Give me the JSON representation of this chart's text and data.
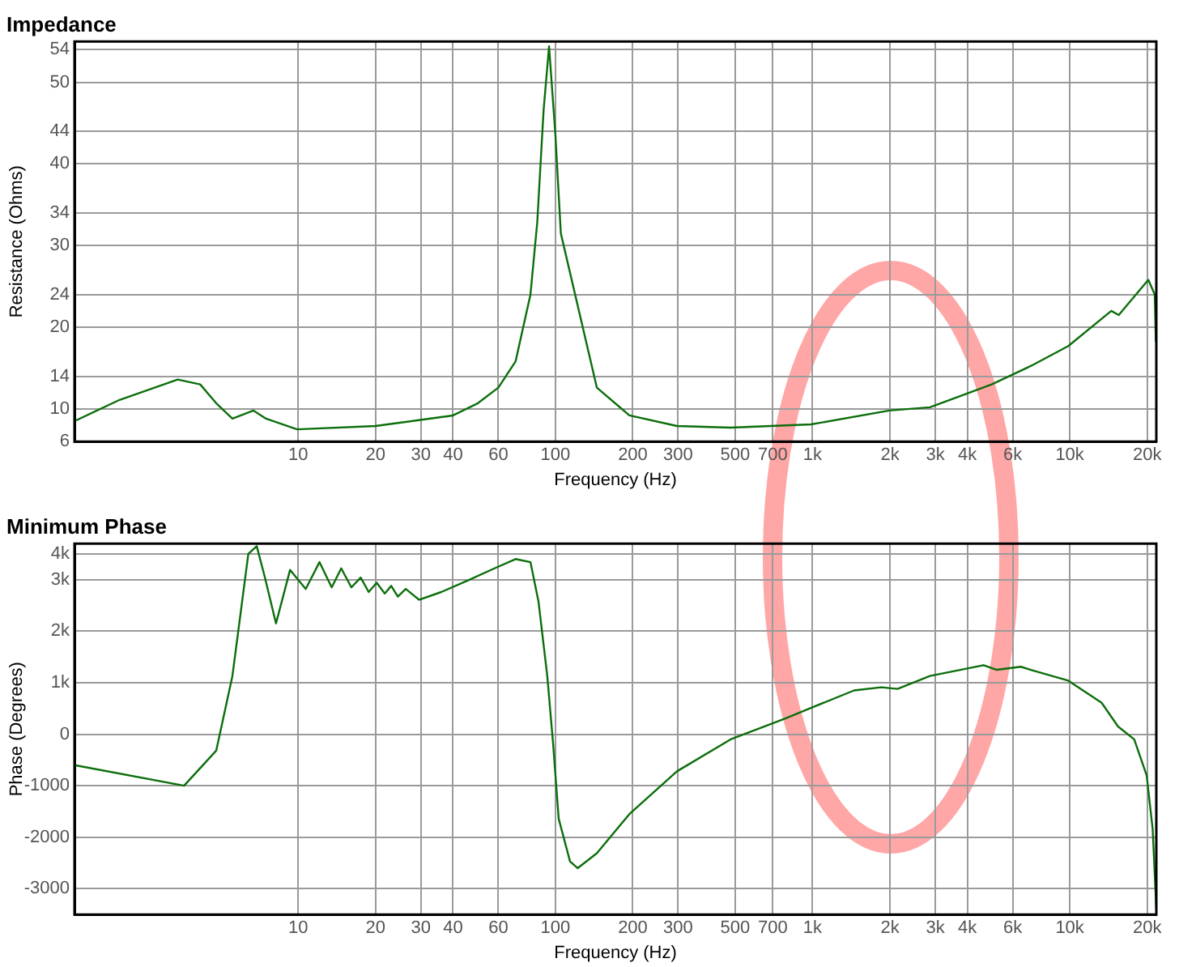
{
  "chart_data": [
    {
      "type": "line",
      "title": "Impedance",
      "xlabel": "Frequency (Hz)",
      "ylabel": "Resistance (Ohms)",
      "log": "x",
      "grid": true,
      "marker": "none",
      "xlim": [
        1.35,
        21700
      ],
      "ylim": [
        6,
        55
      ],
      "xticks": [
        10,
        20,
        30,
        40,
        60,
        100,
        200,
        300,
        500,
        700,
        {
          "value": 1000,
          "label": "1k"
        },
        {
          "value": 2000,
          "label": "2k"
        },
        {
          "value": 3000,
          "label": "3k"
        },
        {
          "value": 4000,
          "label": "4k"
        },
        {
          "value": 6000,
          "label": "6k"
        },
        {
          "value": 10000,
          "label": "10k"
        },
        {
          "value": 20000,
          "label": "20k"
        }
      ],
      "yticks": [
        6,
        10,
        14,
        20,
        24,
        30,
        34,
        40,
        44,
        50,
        54
      ],
      "x": [
        1.35,
        2.02,
        3.4,
        4.16,
        4.8,
        5.55,
        6.7,
        7.5,
        9.9,
        20,
        40,
        50,
        60,
        70,
        80,
        85,
        90,
        94.5,
        100,
        105,
        145,
        194,
        297,
        480,
        985,
        1990,
        2860,
        4970,
        7100,
        9870,
        14500,
        15500,
        20200,
        21400,
        21600
      ],
      "series": [
        {
          "color": "#0b6e0b",
          "values": [
            8.5,
            11.1,
            13.6,
            13.0,
            10.7,
            8.8,
            9.8,
            8.8,
            7.5,
            7.9,
            9.2,
            10.7,
            12.6,
            15.8,
            24,
            32.8,
            46.6,
            54.4,
            43.6,
            31.5,
            12.6,
            9.2,
            7.9,
            7.7,
            8.1,
            9.8,
            10.2,
            13.0,
            15.3,
            17.7,
            22,
            21.5,
            25.8,
            24,
            18.3
          ]
        }
      ]
    },
    {
      "type": "line",
      "title": "Minimum Phase",
      "xlabel": "Frequency (Hz)",
      "ylabel": "Phase (Degrees)",
      "log": "x",
      "grid": true,
      "marker": "none",
      "xlim": [
        1.35,
        21700
      ],
      "ylim": [
        -3500,
        3700
      ],
      "xticks": [
        10,
        20,
        30,
        40,
        60,
        100,
        200,
        300,
        500,
        700,
        {
          "value": 1000,
          "label": "1k"
        },
        {
          "value": 2000,
          "label": "2k"
        },
        {
          "value": 3000,
          "label": "3k"
        },
        {
          "value": 4000,
          "label": "4k"
        },
        {
          "value": 6000,
          "label": "6k"
        },
        {
          "value": 10000,
          "label": "10k"
        },
        {
          "value": 20000,
          "label": "20k"
        }
      ],
      "yticks": [
        -3000,
        -2000,
        -1000,
        0,
        {
          "value": 1000,
          "label": "1k"
        },
        {
          "value": 2000,
          "label": "2k"
        },
        {
          "value": 3000,
          "label": "3k"
        },
        {
          "value": 3500,
          "label": "4k"
        }
      ],
      "x": [
        1.35,
        3.6,
        4.8,
        5.55,
        6.4,
        6.9,
        7.4,
        8.2,
        9.3,
        10.7,
        12.1,
        13.5,
        14.7,
        16.1,
        17.5,
        18.8,
        20.2,
        21.7,
        23,
        24.4,
        26.2,
        29.5,
        36,
        45,
        58,
        70,
        80,
        86,
        93,
        98,
        103,
        114,
        122,
        145,
        194,
        297,
        480,
        780,
        985,
        1450,
        1850,
        2140,
        2860,
        4620,
        5200,
        6450,
        7370,
        9870,
        13300,
        15400,
        17800,
        19900,
        21000,
        21700
      ],
      "series": [
        {
          "color": "#0b6e0b",
          "values": [
            -600,
            -1000,
            -320,
            1130,
            3500,
            3650,
            3070,
            2150,
            3190,
            2820,
            3340,
            2850,
            3220,
            2850,
            3040,
            2760,
            2940,
            2730,
            2880,
            2670,
            2820,
            2610,
            2760,
            2970,
            3220,
            3400,
            3340,
            2570,
            1130,
            -190,
            -1640,
            -2470,
            -2600,
            -2310,
            -1550,
            -720,
            -100,
            300,
            510,
            850,
            910,
            880,
            1130,
            1340,
            1250,
            1310,
            1220,
            1040,
            610,
            150,
            -100,
            -800,
            -1840,
            -3390
          ]
        }
      ]
    }
  ]
}
